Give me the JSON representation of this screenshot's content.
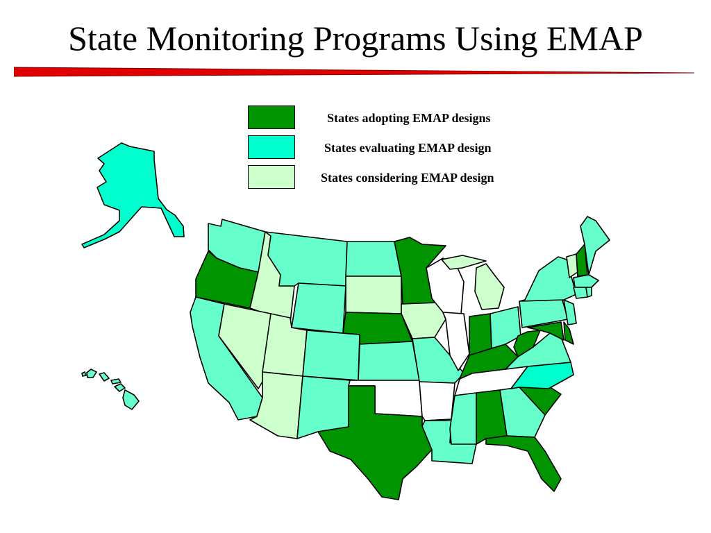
{
  "slide": {
    "title": "State Monitoring Programs Using EMAP"
  },
  "colors": {
    "adopting": "#009400",
    "evaluating": "#00ffcc",
    "considering": "#ccffcc",
    "participating": "#66ffcc",
    "none": "#ffffff",
    "title_rule": "#e00000"
  },
  "legend": [
    {
      "key": "adopting",
      "label": "States adopting EMAP designs"
    },
    {
      "key": "evaluating",
      "label": "States evaluating EMAP design"
    },
    {
      "key": "considering",
      "label": "States considering EMAP design"
    }
  ],
  "states": {
    "WA": "participating",
    "OR": "adopting",
    "CA": "participating",
    "ID": "considering",
    "NV": "considering",
    "UT": "considering",
    "AZ": "considering",
    "MT": "participating",
    "WY": "participating",
    "CO": "participating",
    "NM": "participating",
    "ND": "participating",
    "SD": "considering",
    "NE": "adopting",
    "KS": "participating",
    "OK": "none",
    "TX": "adopting",
    "MN": "adopting",
    "IA": "considering",
    "MO": "participating",
    "AR": "none",
    "LA": "participating",
    "WI": "none",
    "IL": "none",
    "MI": "considering",
    "IN": "adopting",
    "OH": "participating",
    "KY": "adopting",
    "TN": "none",
    "MS": "participating",
    "AL": "adopting",
    "GA": "participating",
    "FL": "adopting",
    "SC": "adopting",
    "NC": "evaluating",
    "VA": "participating",
    "WV": "adopting",
    "MD": "adopting",
    "DE": "adopting",
    "PA": "participating",
    "NJ": "participating",
    "NY": "participating",
    "VT": "considering",
    "NH": "adopting",
    "ME": "participating",
    "MA": "participating",
    "CT": "participating",
    "RI": "participating",
    "AK": "evaluating",
    "HI": "participating"
  }
}
